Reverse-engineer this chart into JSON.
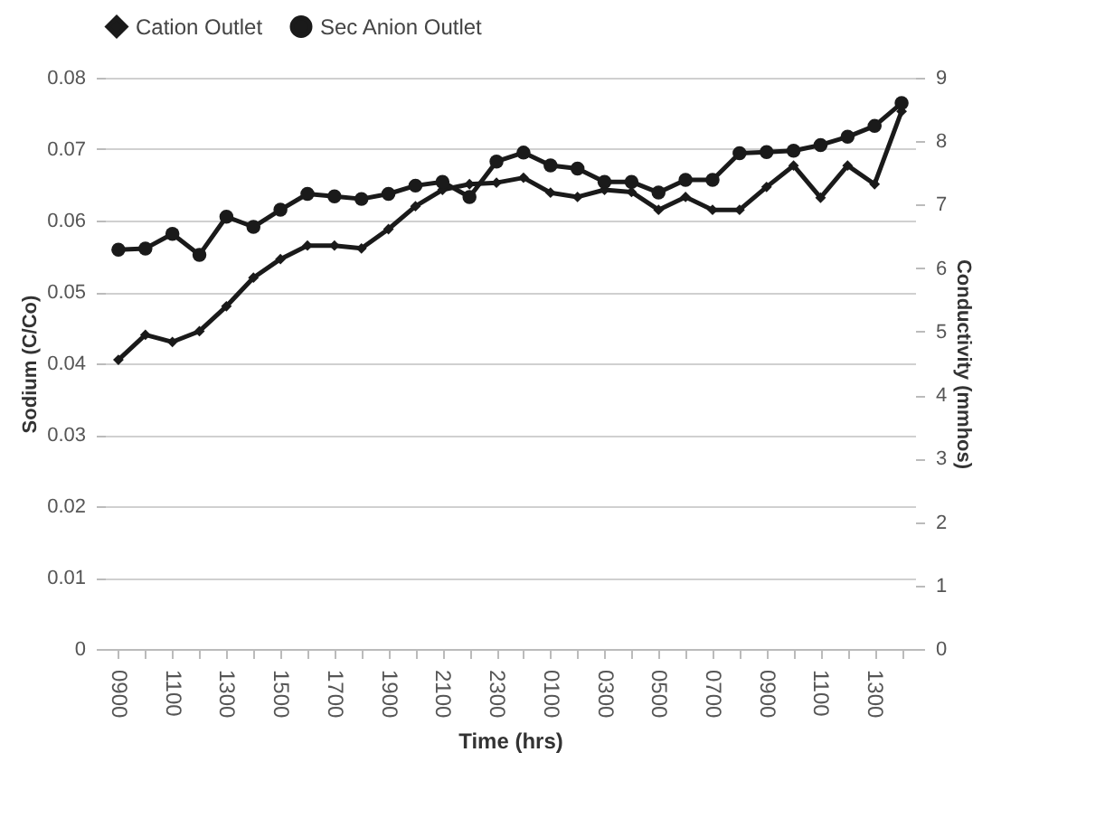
{
  "chart_data": {
    "type": "line",
    "xlabel": "Time (hrs)",
    "ylabel": "Sodium (C/Co)",
    "y2label": "Conductivity (mmhos)",
    "categories": [
      "0900",
      null,
      "1100",
      null,
      "1300",
      null,
      "1500",
      null,
      "1700",
      null,
      "1900",
      null,
      "2100",
      null,
      "2300",
      null,
      "0100",
      null,
      "0300",
      null,
      "0500",
      null,
      "0700",
      null,
      "0900",
      null,
      "1100",
      null,
      "1300",
      null
    ],
    "series": [
      {
        "name": "Cation Outlet",
        "color": "#1a1a1a",
        "marker": "diamond",
        "values": [
          0.0405,
          0.044,
          0.043,
          0.0445,
          0.048,
          0.052,
          0.0546,
          0.0565,
          0.0565,
          0.0561,
          0.0588,
          0.062,
          0.0643,
          0.0651,
          0.0653,
          0.066,
          0.0639,
          0.0633,
          0.0643,
          0.064,
          0.0615,
          0.0633,
          0.0615,
          0.0615,
          0.0647,
          0.0677,
          0.0632,
          0.0677,
          0.0651,
          0.0753
        ]
      },
      {
        "name": "Sec Anion Outlet",
        "color": "#1a1a1a",
        "marker": "circle",
        "axis": "y2",
        "values": [
          6.29,
          6.31,
          6.54,
          6.21,
          6.81,
          6.65,
          6.92,
          7.17,
          7.13,
          7.09,
          7.17,
          7.3,
          7.36,
          7.12,
          7.68,
          7.82,
          7.62,
          7.57,
          7.36,
          7.36,
          7.19,
          7.39,
          7.39,
          7.81,
          7.83,
          7.85,
          7.94,
          8.07,
          8.24,
          8.6
        ]
      }
    ],
    "ylim": [
      0,
      0.08
    ],
    "yticks": [
      0,
      0.01,
      0.02,
      0.03,
      0.04,
      0.05,
      0.06,
      0.07,
      0.08
    ],
    "y2lim": [
      0,
      9
    ],
    "y2ticks": [
      0,
      1,
      2,
      3,
      4,
      5,
      6,
      7,
      8,
      9
    ],
    "grid": "y",
    "legend": "top",
    "line_style": "solid"
  }
}
